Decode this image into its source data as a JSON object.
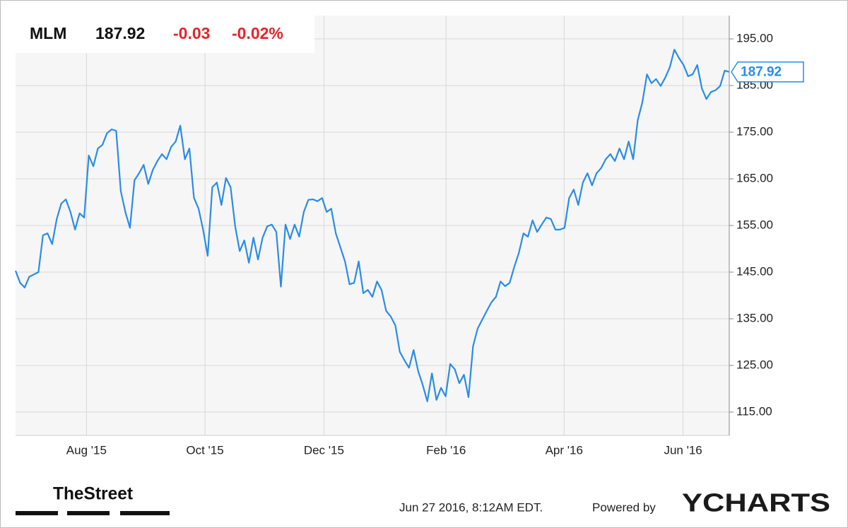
{
  "chart_data": {
    "type": "line",
    "symbol": "MLM",
    "price": 187.92,
    "change": -0.03,
    "change_percent": "-0.02%",
    "values": [
      145.3,
      142.7,
      141.7,
      144,
      144.5,
      145,
      152.9,
      153.3,
      151,
      156.4,
      159.7,
      160.6,
      157.9,
      154.1,
      157.6,
      156.7,
      170,
      167.7,
      171.5,
      172.3,
      174.8,
      175.6,
      175.3,
      162.4,
      157.9,
      154.5,
      164.7,
      166.2,
      168,
      163.9,
      166.9,
      168.8,
      170.3,
      169.2,
      171.8,
      173,
      176.4,
      169.2,
      171.5,
      160.9,
      158.6,
      154.1,
      148.5,
      163.2,
      164.2,
      159.4,
      165.2,
      163.2,
      154.8,
      149.5,
      151.8,
      147,
      152.4,
      147.7,
      152.4,
      154.8,
      155.2,
      153.6,
      141.9,
      155.2,
      152.1,
      155.2,
      152.6,
      157.9,
      160.5,
      160.6,
      160.2,
      160.9,
      157.9,
      158.6,
      153.3,
      150.3,
      147.3,
      142.4,
      142.7,
      147.3,
      140.5,
      141.2,
      139.7,
      143,
      141.2,
      136.7,
      135.5,
      133.6,
      127.9,
      126.1,
      124.5,
      128.3,
      123.8,
      120.8,
      117.3,
      123.3,
      117.6,
      120.2,
      118.4,
      125.3,
      124.2,
      121.2,
      123,
      118.2,
      129.1,
      132.9,
      134.8,
      136.7,
      138.5,
      139.7,
      143,
      142,
      142.7,
      146.1,
      149.1,
      153.3,
      152.6,
      156.1,
      153.6,
      155.2,
      156.7,
      156.4,
      154.1,
      154.1,
      154.5,
      160.9,
      162.7,
      159.4,
      164.2,
      166.2,
      163.6,
      166.2,
      167.3,
      169.2,
      170.3,
      168.8,
      171.5,
      169.2,
      173,
      169.2,
      177.6,
      181.4,
      187.4,
      185.5,
      186.4,
      184.9,
      186.7,
      188.9,
      192.7,
      190.9,
      189.4,
      187,
      187.4,
      189.4,
      184.4,
      182.1,
      183.6,
      184,
      184.9,
      188.2,
      187.92
    ],
    "color": "#2a8ce6",
    "xlim": [
      0,
      156
    ],
    "xticks": [
      {
        "value": 15.5,
        "label": "Aug '15"
      },
      {
        "value": 41.4,
        "label": "Oct '15"
      },
      {
        "value": 67.4,
        "label": "Dec '15"
      },
      {
        "value": 94.1,
        "label": "Feb '16"
      },
      {
        "value": 119.9,
        "label": "Apr '16"
      },
      {
        "value": 145.9,
        "label": "Jun '16"
      }
    ],
    "ylim": [
      110,
      200
    ],
    "yticks": [
      {
        "value": 115,
        "label": "115.00"
      },
      {
        "value": 125,
        "label": "125.00"
      },
      {
        "value": 135,
        "label": "135.00"
      },
      {
        "value": 145,
        "label": "145.00"
      },
      {
        "value": 155,
        "label": "155.00"
      },
      {
        "value": 165,
        "label": "165.00"
      },
      {
        "value": 175,
        "label": "175.00"
      },
      {
        "value": 185,
        "label": "185.00"
      },
      {
        "value": 195,
        "label": "195.00"
      }
    ],
    "grid": true,
    "timestamp": "Jun 27 2016, 8:12AM EDT.",
    "powered_by": "Powered by",
    "brand": "YCHARTS",
    "source_logo": "TheStreet"
  }
}
